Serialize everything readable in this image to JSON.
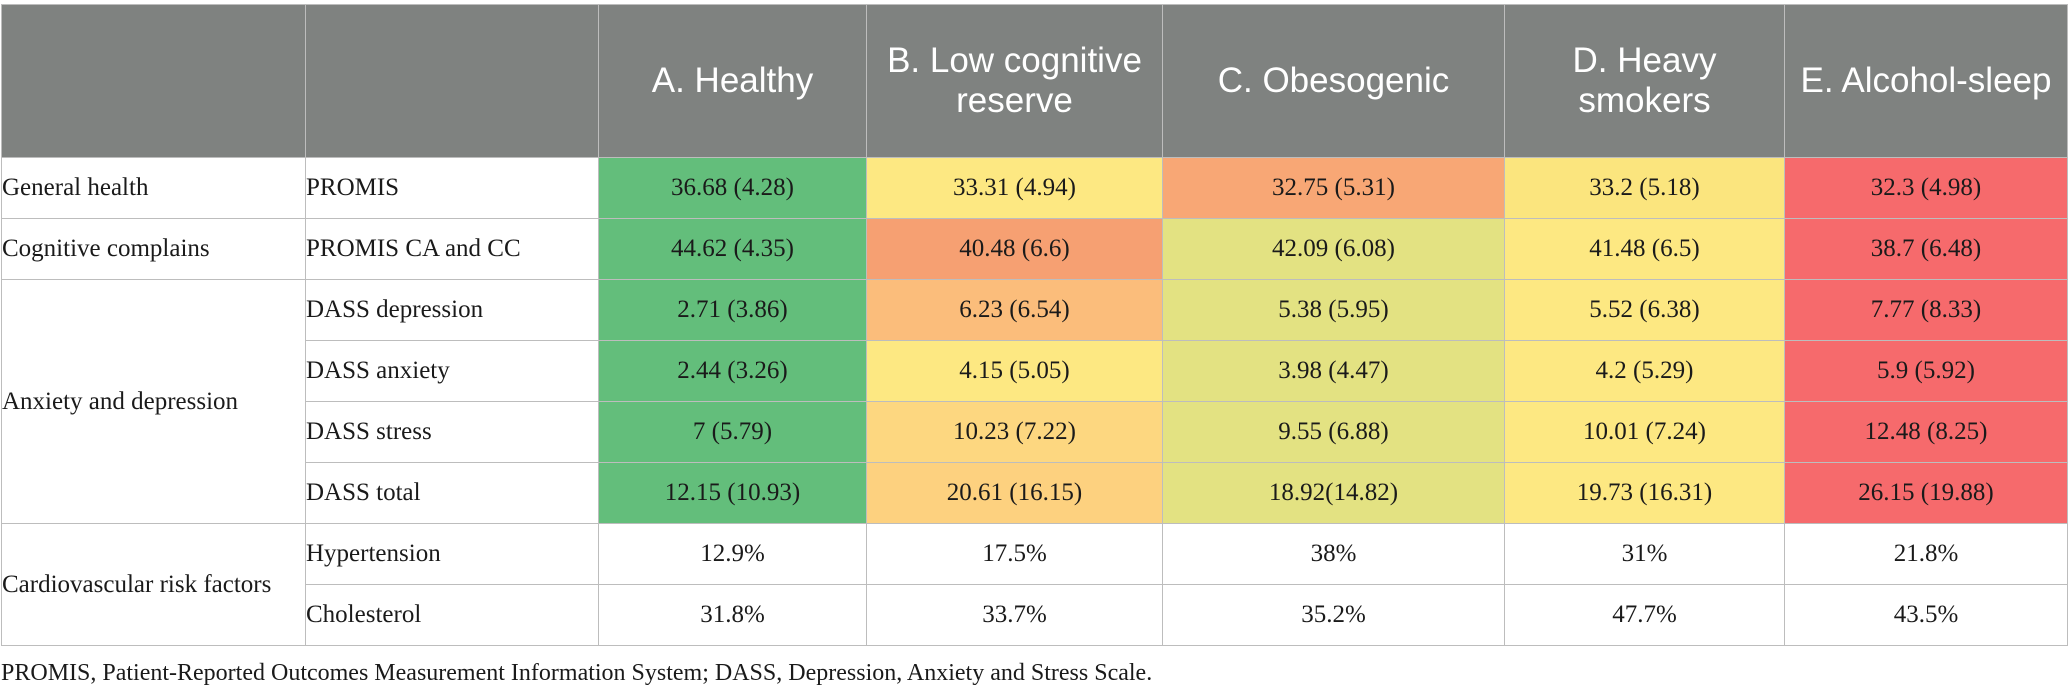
{
  "colors": {
    "header_bg": "#7f8280",
    "green": "#63be7b",
    "yellow": "#fde882",
    "light_yellow": "#fbe57e",
    "yellow_green": "#e3e282",
    "light_orange": "#fdc97f",
    "orange": "#fbb87a",
    "dark_orange": "#f8a775",
    "red": "#f66a6c",
    "white": "#ffffff"
  },
  "headers": [
    "",
    "",
    "A. Healthy",
    "B. Low cognitive reserve",
    "C. Obesogenic",
    "D. Heavy smokers",
    "E. Alcohol-sleep"
  ],
  "groups": [
    {
      "label": "General health",
      "rows": [
        {
          "measure": "PROMIS",
          "values": [
            "36.68 (4.28)",
            "33.31 (4.94)",
            "32.75 (5.31)",
            "33.2 (5.18)",
            "32.3 (4.98)"
          ],
          "colors": [
            "#63be7b",
            "#fde882",
            "#f8a775",
            "#fbe57e",
            "#f66a6c"
          ]
        }
      ]
    },
    {
      "label": "Cognitive complains",
      "rows": [
        {
          "measure": "PROMIS CA and CC",
          "values": [
            "44.62 (4.35)",
            "40.48 (6.6)",
            "42.09 (6.08)",
            "41.48 (6.5)",
            "38.7 (6.48)"
          ],
          "colors": [
            "#63be7b",
            "#f6a072",
            "#e3e282",
            "#fde882",
            "#f66a6c"
          ]
        }
      ]
    },
    {
      "label": "Anxiety and depression",
      "rows": [
        {
          "measure": "DASS depression",
          "values": [
            "2.71 (3.86)",
            "6.23 (6.54)",
            "5.38 (5.95)",
            "5.52 (6.38)",
            "7.77 (8.33)"
          ],
          "colors": [
            "#63be7b",
            "#fbbd7b",
            "#e3e282",
            "#fde882",
            "#f66a6c"
          ]
        },
        {
          "measure": "DASS anxiety",
          "values": [
            "2.44 (3.26)",
            "4.15 (5.05)",
            "3.98 (4.47)",
            "4.2 (5.29)",
            "5.9 (5.92)"
          ],
          "colors": [
            "#63be7b",
            "#fde882",
            "#e3e282",
            "#fde882",
            "#f66a6c"
          ]
        },
        {
          "measure": "DASS stress",
          "values": [
            "7 (5.79)",
            "10.23 (7.22)",
            "9.55 (6.88)",
            "10.01 (7.24)",
            "12.48 (8.25)"
          ],
          "colors": [
            "#63be7b",
            "#fdd780",
            "#e3e282",
            "#fde882",
            "#f66a6c"
          ]
        },
        {
          "measure": "DASS total",
          "values": [
            "12.15 (10.93)",
            "20.61 (16.15)",
            "18.92(14.82)",
            "19.73 (16.31)",
            "26.15 (19.88)"
          ],
          "colors": [
            "#63be7b",
            "#fdd17f",
            "#e3e282",
            "#fde882",
            "#f66a6c"
          ]
        }
      ]
    },
    {
      "label": "Cardiovascular risk factors",
      "rows": [
        {
          "measure": "Hypertension",
          "values": [
            "12.9%",
            "17.5%",
            "38%",
            "31%",
            "21.8%"
          ],
          "colors": [
            "#ffffff",
            "#ffffff",
            "#ffffff",
            "#ffffff",
            "#ffffff"
          ]
        },
        {
          "measure": "Cholesterol",
          "values": [
            "31.8%",
            "33.7%",
            "35.2%",
            "47.7%",
            "43.5%"
          ],
          "colors": [
            "#ffffff",
            "#ffffff",
            "#ffffff",
            "#ffffff",
            "#ffffff"
          ]
        }
      ]
    }
  ],
  "footnote": "PROMIS, Patient-Reported Outcomes Measurement Information System; DASS, Depression, Anxiety and Stress Scale."
}
